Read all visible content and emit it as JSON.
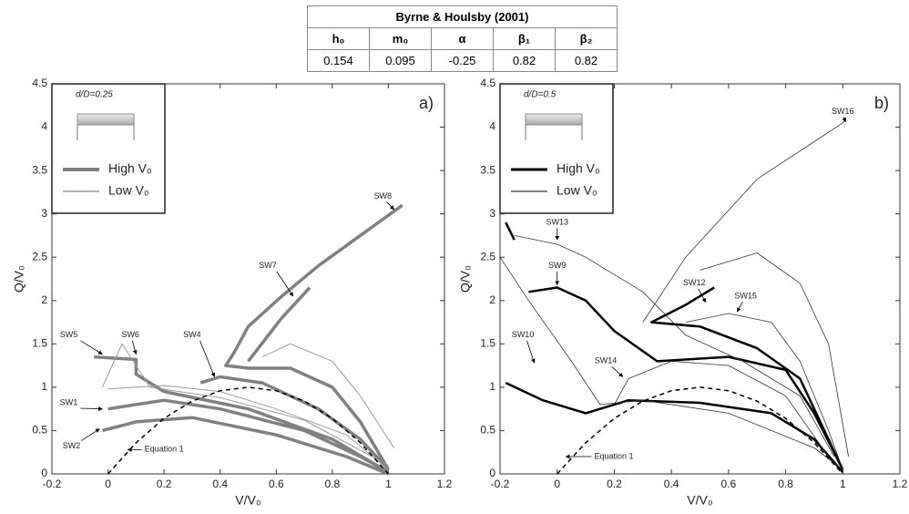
{
  "table": {
    "title": "Byrne & Houlsby (2001)",
    "headers": [
      "h₀",
      "m₀",
      "α",
      "β₁",
      "β₂"
    ],
    "values": [
      "0.154",
      "0.095",
      "-0.25",
      "0.82",
      "0.82"
    ]
  },
  "chart_data": [
    {
      "type": "line",
      "panel_label": "a)",
      "inset_label": "d/D=0.25",
      "x_label": "V/V₀",
      "y_label": "Q/V₀",
      "xlim": [
        -0.2,
        1.2
      ],
      "ylim": [
        0,
        4.5
      ],
      "xticks": [
        -0.2,
        0,
        0.2,
        0.4,
        0.6,
        0.8,
        1,
        1.2
      ],
      "yticks": [
        0,
        0.5,
        1,
        1.5,
        2,
        2.5,
        3,
        3.5,
        4,
        4.5
      ],
      "grid": false,
      "series": [
        {
          "name": "High V₀",
          "color": "#808080",
          "line_width": 3.5,
          "x": [
            1.05,
            0.9,
            0.75,
            0.62,
            0.5,
            0.45,
            0.42,
            0.5,
            0.65,
            0.8,
            0.9,
            1.0,
            null,
            0.72,
            0.62,
            0.5,
            null,
            0.33,
            0.4,
            0.55,
            0.75,
            0.9,
            1.0,
            null,
            -0.05,
            0.1,
            0.1,
            0.2,
            0.5,
            0.8,
            1.0,
            null,
            0.0,
            0.2,
            0.4,
            0.7,
            0.9,
            1.0,
            null,
            -0.02,
            0.1,
            0.3,
            0.6,
            0.85,
            1.0
          ],
          "values": [
            3.1,
            2.75,
            2.4,
            2.05,
            1.7,
            1.4,
            1.25,
            1.22,
            1.22,
            1.0,
            0.6,
            0.05,
            null,
            2.15,
            1.8,
            1.3,
            null,
            1.05,
            1.12,
            1.05,
            0.75,
            0.4,
            0.05,
            null,
            1.35,
            1.32,
            1.15,
            0.95,
            0.75,
            0.4,
            0.02,
            null,
            0.75,
            0.85,
            0.75,
            0.5,
            0.2,
            0.02,
            null,
            0.5,
            0.6,
            0.65,
            0.45,
            0.2,
            0.0
          ]
        },
        {
          "name": "Low V₀",
          "color": "#999999",
          "line_width": 1,
          "x": [
            0.0,
            0.2,
            0.4,
            0.6,
            0.85,
            1.0,
            null,
            0.55,
            0.65,
            0.8,
            0.9,
            1.02,
            null,
            -0.02,
            0.05,
            0.15,
            0.4,
            0.7,
            1.0
          ],
          "values": [
            0.98,
            1.02,
            0.95,
            0.75,
            0.45,
            0.05,
            null,
            1.35,
            1.5,
            1.3,
            0.9,
            0.3,
            null,
            1.0,
            1.5,
            1.0,
            0.88,
            0.62,
            0.1
          ]
        },
        {
          "color": "#000000",
          "line_width": 1.5,
          "dashed": true,
          "x": [
            0,
            0.1,
            0.2,
            0.3,
            0.4,
            0.5,
            0.6,
            0.7,
            0.8,
            0.9,
            1
          ],
          "values": [
            0,
            0.36,
            0.64,
            0.84,
            0.96,
            1,
            0.96,
            0.84,
            0.64,
            0.36,
            0
          ]
        }
      ],
      "annotations": [
        "SW8",
        "SW7",
        "SW4",
        "SW5",
        "SW6",
        "SW1",
        "SW2",
        "Equation 1"
      ]
    },
    {
      "type": "line",
      "panel_label": "b)",
      "inset_label": "d/D=0.5",
      "x_label": "V/V₀",
      "y_label": "Q/V₀",
      "xlim": [
        -0.2,
        1.2
      ],
      "ylim": [
        0,
        4.5
      ],
      "xticks": [
        -0.2,
        0,
        0.2,
        0.4,
        0.6,
        0.8,
        1,
        1.2
      ],
      "yticks": [
        0,
        0.5,
        1,
        1.5,
        2,
        2.5,
        3,
        3.5,
        4,
        4.5
      ],
      "grid": false,
      "series": [
        {
          "name": "High V₀",
          "color": "#000000",
          "line_width": 2.5,
          "x": [
            -0.1,
            0.0,
            0.1,
            0.2,
            0.35,
            0.6,
            0.8,
            0.9,
            1.0,
            null,
            -0.18,
            -0.05,
            0.1,
            0.25,
            0.5,
            0.75,
            0.9,
            1.0,
            null,
            0.55,
            0.45,
            0.33,
            0.5,
            0.7,
            0.85,
            0.95,
            1.0,
            null,
            -0.18,
            -0.15
          ],
          "values": [
            2.1,
            2.15,
            2.0,
            1.65,
            1.3,
            1.35,
            1.2,
            0.7,
            0.05,
            null,
            1.05,
            0.85,
            0.7,
            0.85,
            0.82,
            0.7,
            0.4,
            0.02,
            null,
            2.15,
            1.95,
            1.75,
            1.7,
            1.45,
            1.1,
            0.4,
            0.05,
            null,
            2.9,
            2.7
          ]
        },
        {
          "name": "Low V₀",
          "color": "#333333",
          "line_width": 0.8,
          "x": [
            -0.15,
            0.0,
            0.1,
            0.3,
            0.45,
            0.65,
            0.85,
            0.97,
            null,
            0.3,
            0.45,
            0.7,
            1.0,
            1.01,
            null,
            0.5,
            0.7,
            0.85,
            0.95,
            1.02,
            null,
            0.45,
            0.6,
            0.75,
            0.85,
            0.95,
            1.0,
            null,
            0.2,
            0.25,
            0.4,
            0.6,
            0.8,
            0.95,
            null,
            -0.2,
            -0.1,
            0.05,
            0.15,
            0.3,
            0.6,
            0.9,
            1.0
          ],
          "values": [
            2.75,
            2.65,
            2.5,
            2.1,
            1.6,
            1.3,
            0.9,
            0.2,
            null,
            1.75,
            2.5,
            3.4,
            4.05,
            4.1,
            null,
            2.35,
            2.55,
            2.2,
            1.5,
            0.2,
            null,
            1.75,
            1.85,
            1.75,
            1.3,
            0.5,
            0.05,
            null,
            0.8,
            1.1,
            1.3,
            1.25,
            0.9,
            0.2,
            null,
            2.5,
            2.0,
            1.3,
            0.8,
            0.85,
            0.7,
            0.3,
            0.05
          ]
        },
        {
          "color": "#000000",
          "line_width": 1.5,
          "dashed": true,
          "x": [
            0,
            0.1,
            0.2,
            0.3,
            0.4,
            0.5,
            0.6,
            0.7,
            0.8,
            0.9,
            1
          ],
          "values": [
            0,
            0.36,
            0.64,
            0.84,
            0.96,
            1,
            0.96,
            0.84,
            0.64,
            0.36,
            0
          ]
        }
      ],
      "annotations": [
        "SW16",
        "SW13",
        "SW9",
        "SW12",
        "SW15",
        "SW10",
        "SW14",
        "Equation 1"
      ]
    }
  ]
}
